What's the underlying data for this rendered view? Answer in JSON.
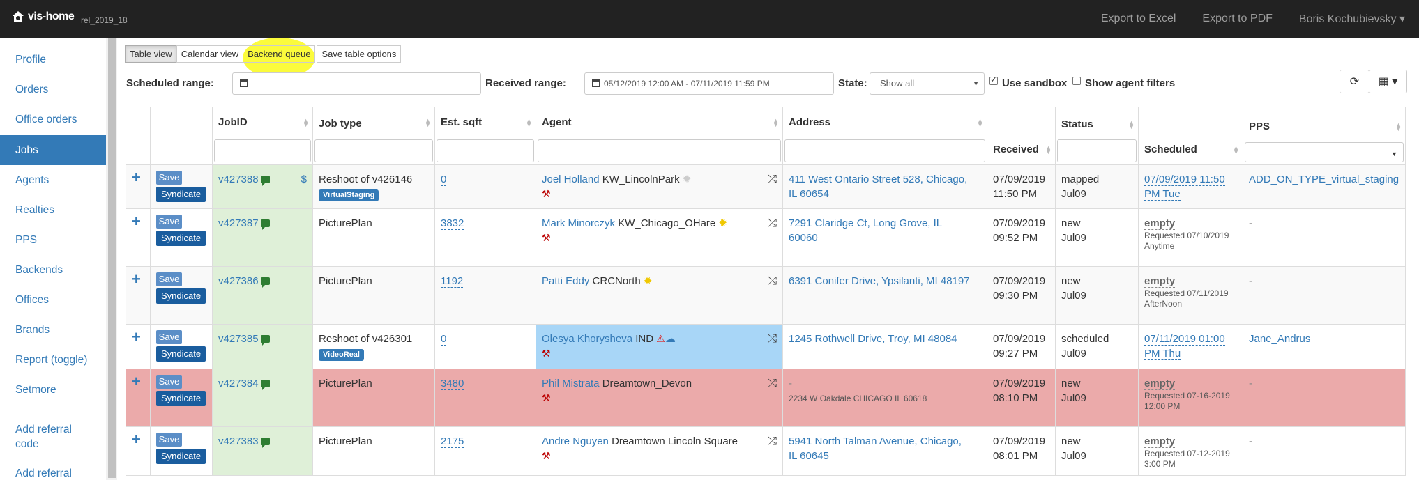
{
  "navbar": {
    "brand": "vis-home",
    "release": "rel_2019_18",
    "links": [
      "Export to Excel",
      "Export to PDF",
      "Boris Kochubievsky ▾"
    ]
  },
  "sidebar": {
    "items": [
      "Profile",
      "Orders",
      "Office orders",
      "Jobs",
      "Agents",
      "Realties",
      "PPS",
      "Backends",
      "Offices",
      "Brands",
      "Report (toggle)",
      "Setmore",
      "Add referral code",
      "Add referral"
    ],
    "active": "Jobs"
  },
  "views": [
    "Table view",
    "Calendar view",
    "Backend queue",
    "Save table options"
  ],
  "filters": {
    "scheduled_label": "Scheduled range:",
    "scheduled_value": "",
    "received_label": "Received range:",
    "received_value": "05/12/2019 12:00 AM - 07/11/2019 11:59 PM",
    "state_label": "State:",
    "state_value": "Show all",
    "use_sandbox": "Use sandbox",
    "show_agent_filters": "Show agent filters"
  },
  "columns": [
    "",
    "",
    "JobID",
    "Job type",
    "Est. sqft",
    "Agent",
    "Address",
    "Received",
    "Status",
    "Scheduled",
    "PPS"
  ],
  "save_label": "Save",
  "syndicate_label": "Syndicate",
  "rows": [
    {
      "jobid": "v427388",
      "dollar": "$",
      "jobtype": "Reshoot of v426146",
      "tag": "VirtualStaging",
      "sqft": "0",
      "agent": "Joel Holland",
      "office": "KW_LincolnPark",
      "addr1": "411 West Ontario Street 528, Chicago,",
      "addr2": "IL 60654",
      "addr_small": "",
      "recv1": "07/09/2019",
      "recv2": "11:50 PM",
      "status1": "mapped",
      "status2": "Jul09",
      "sched1": "07/09/2019 11:50",
      "sched2": "PM Tue",
      "sched_req": "",
      "sched_req2": "",
      "pps": "ADD_ON_TYPE_virtual_staging"
    },
    {
      "jobid": "v427387",
      "dollar": "",
      "jobtype": "PicturePlan",
      "tag": "",
      "sqft": "3832",
      "agent": "Mark Minorczyk",
      "office": "KW_Chicago_OHare",
      "addr1": "7291 Claridge Ct, Long Grove, IL",
      "addr2": "60060",
      "addr_small": "",
      "recv1": "07/09/2019",
      "recv2": "09:52 PM",
      "status1": "new",
      "status2": "Jul09",
      "sched1": "empty",
      "sched2": "",
      "sched_req": "Requested 07/10/2019",
      "sched_req2": "Anytime",
      "pps": "-"
    },
    {
      "jobid": "v427386",
      "dollar": "",
      "jobtype": "PicturePlan",
      "tag": "",
      "sqft": "1192",
      "agent": "Patti Eddy",
      "office": "CRCNorth",
      "addr1": "6391 Conifer Drive, Ypsilanti, MI 48197",
      "addr2": "",
      "addr_small": "",
      "recv1": "07/09/2019",
      "recv2": "09:30 PM",
      "status1": "new",
      "status2": "Jul09",
      "sched1": "empty",
      "sched2": "",
      "sched_req": "Requested 07/11/2019",
      "sched_req2": "AfterNoon",
      "pps": "-"
    },
    {
      "jobid": "v427385",
      "dollar": "",
      "jobtype": "Reshoot of v426301",
      "tag": "VideoReal",
      "sqft": "0",
      "agent": "Olesya Khorysheva",
      "office": "IND",
      "addr1": "1245 Rothwell Drive, Troy, MI 48084",
      "addr2": "",
      "addr_small": "",
      "recv1": "07/09/2019",
      "recv2": "09:27 PM",
      "status1": "scheduled",
      "status2": "Jul09",
      "sched1": "07/11/2019 01:00",
      "sched2": "PM Thu",
      "sched_req": "",
      "sched_req2": "",
      "pps": "Jane_Andrus"
    },
    {
      "jobid": "v427384",
      "dollar": "",
      "jobtype": "PicturePlan",
      "tag": "",
      "sqft": "3480",
      "agent": "Phil Mistrata",
      "office": "Dreamtown_Devon",
      "addr1": "-",
      "addr2": "",
      "addr_small": "2234 W Oakdale CHICAGO IL 60618",
      "recv1": "07/09/2019",
      "recv2": "08:10 PM",
      "status1": "new",
      "status2": "Jul09",
      "sched1": "empty",
      "sched2": "",
      "sched_req": "Requested 07-16-2019",
      "sched_req2": "12:00 PM",
      "pps": "-"
    },
    {
      "jobid": "v427383",
      "dollar": "",
      "jobtype": "PicturePlan",
      "tag": "",
      "sqft": "2175",
      "agent": "Andre Nguyen",
      "office": "Dreamtown Lincoln Square",
      "addr1": "5941 North Talman Avenue, Chicago,",
      "addr2": "IL 60645",
      "addr_small": "",
      "recv1": "07/09/2019",
      "recv2": "08:01 PM",
      "status1": "new",
      "status2": "Jul09",
      "sched1": "empty",
      "sched2": "",
      "sched_req": "Requested 07-12-2019",
      "sched_req2": "3:00 PM",
      "pps": "-"
    }
  ]
}
